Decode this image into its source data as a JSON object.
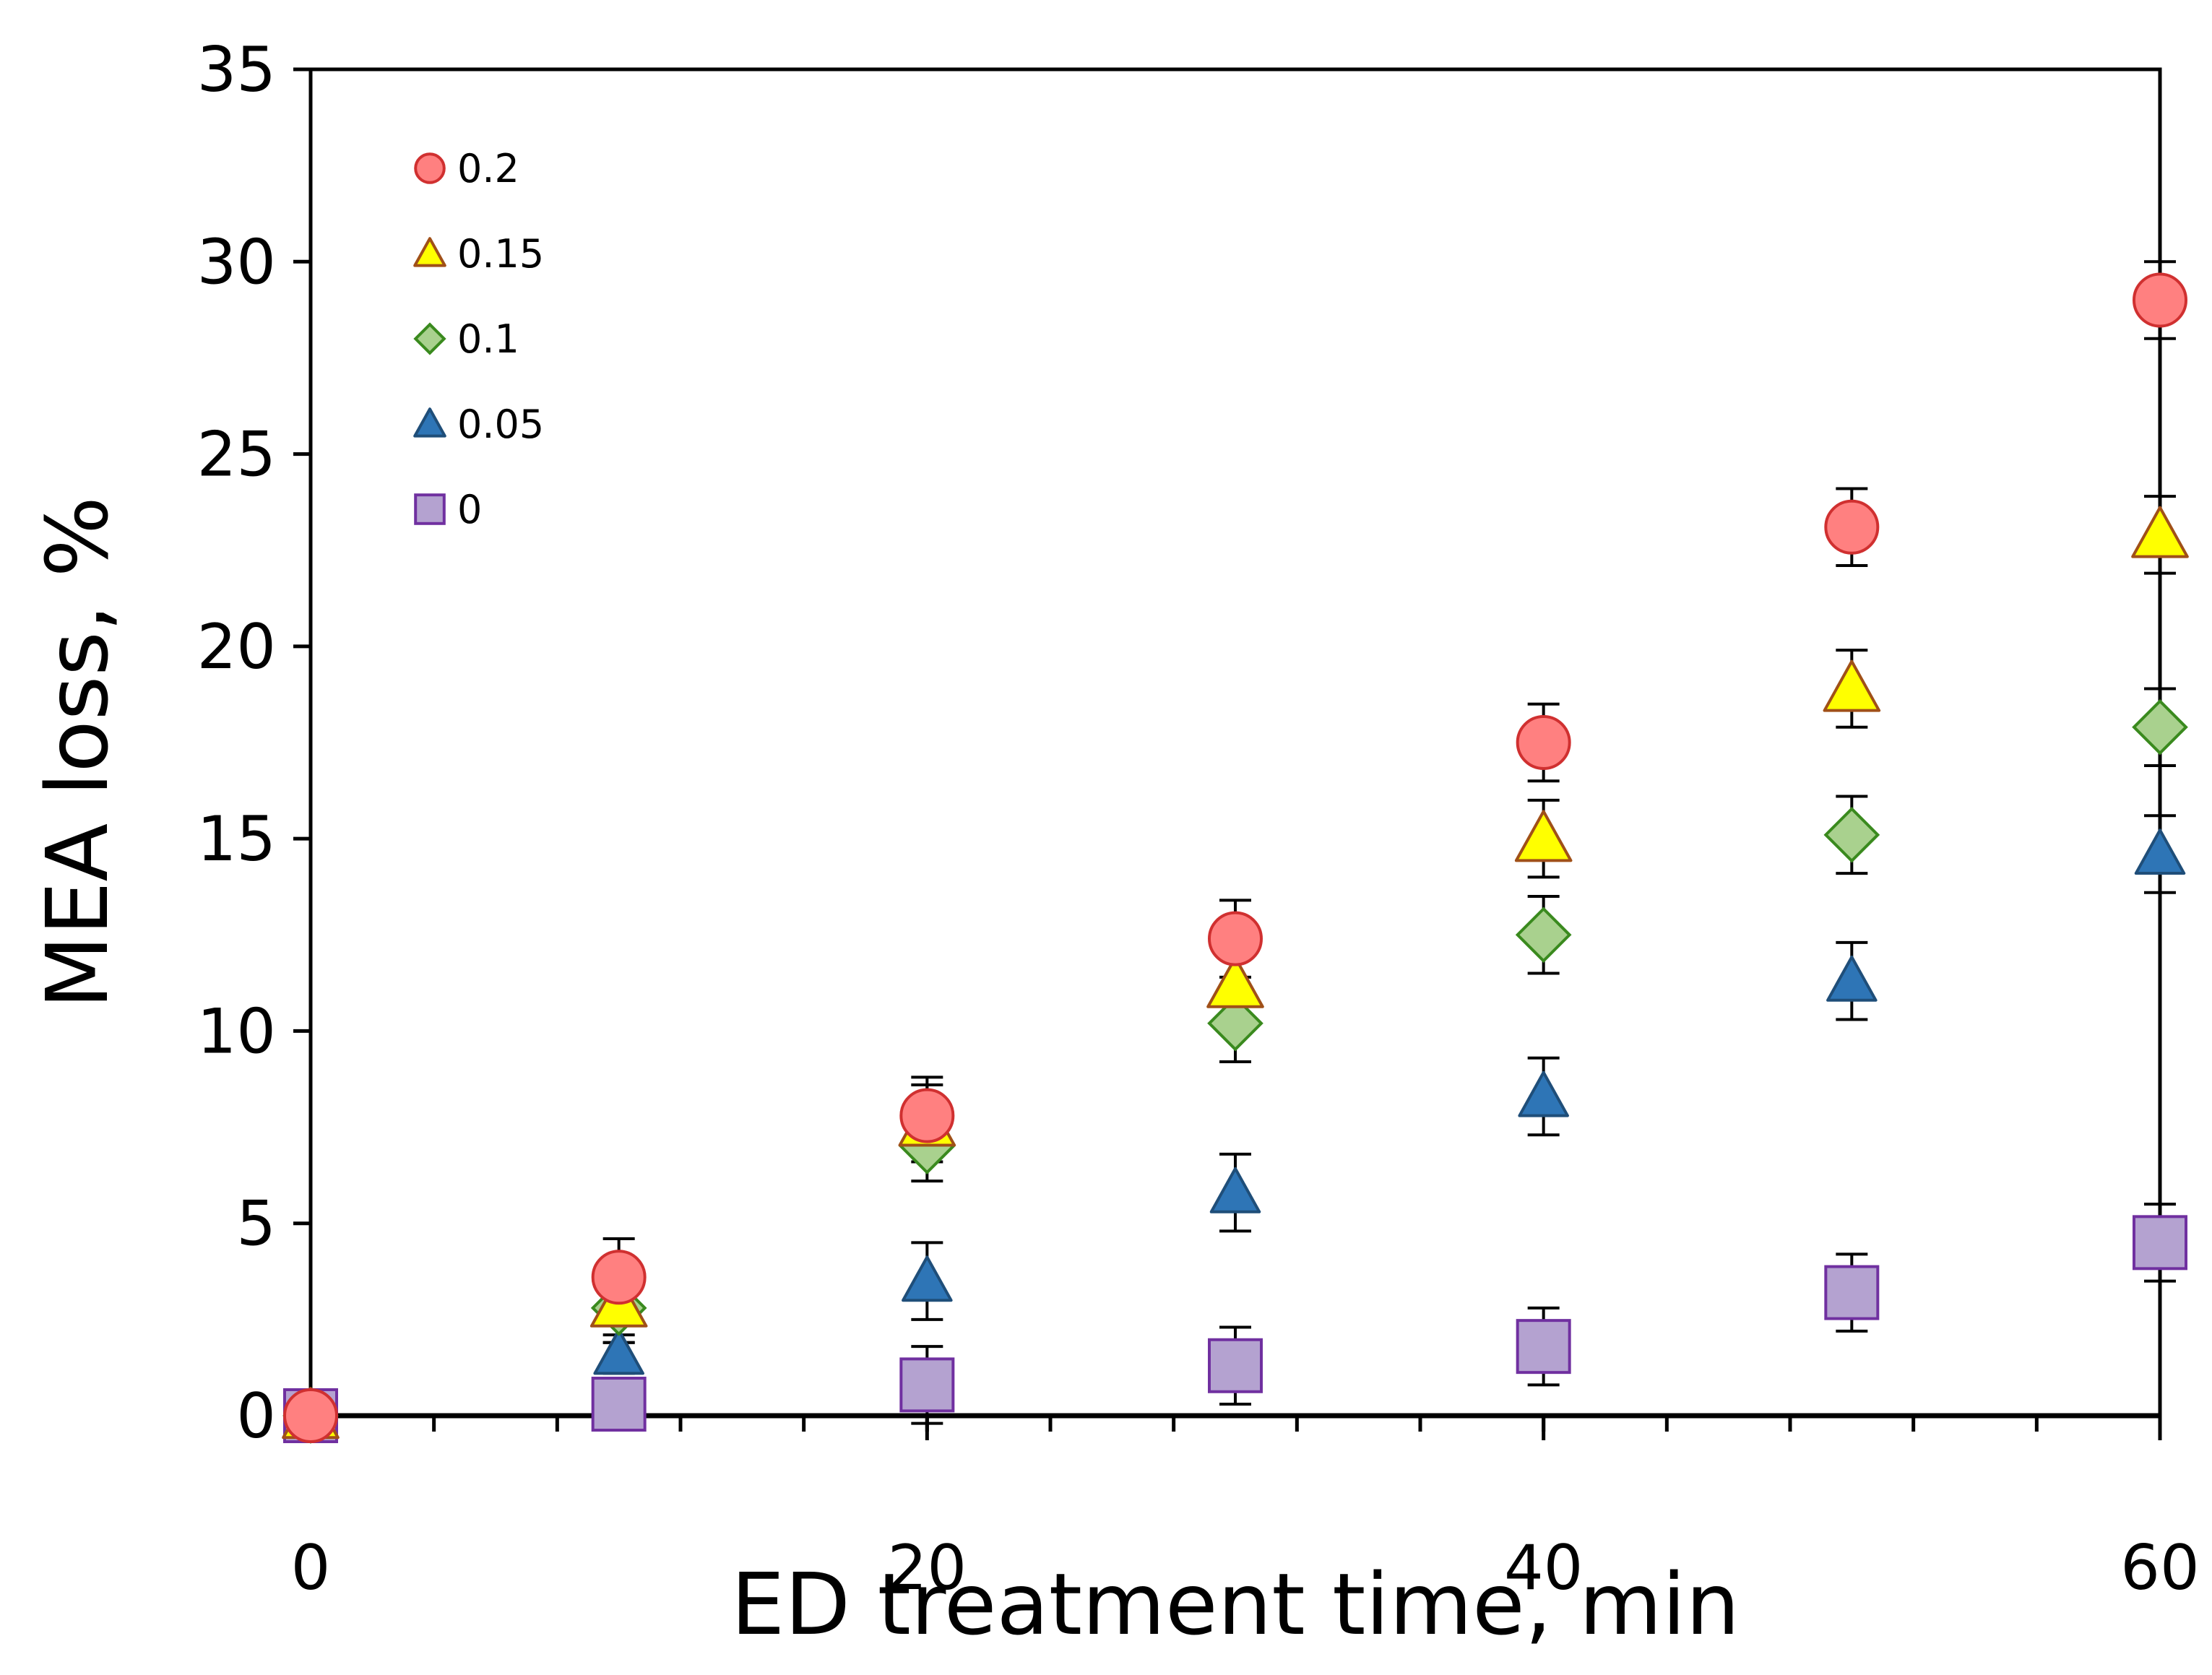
{
  "chart_data": {
    "type": "scatter",
    "title": "",
    "xlabel": "ED treatment time, min",
    "ylabel": "MEA loss, %",
    "xlim": [
      0,
      60
    ],
    "ylim": [
      0,
      35
    ],
    "xticks": [
      0,
      20,
      40,
      60
    ],
    "xtick_labels": [
      "0",
      "20",
      "40",
      "60"
    ],
    "yticks": [
      0,
      5,
      10,
      15,
      20,
      25,
      30,
      35
    ],
    "ytick_labels": [
      "0",
      "5",
      "10",
      "15",
      "20",
      "25",
      "30",
      "35"
    ],
    "x_minor_step": 4,
    "grid": false,
    "legend_position": "top-left",
    "x": [
      0,
      10,
      20,
      30,
      40,
      50,
      60
    ],
    "series": [
      {
        "name": "0.2",
        "marker": "circle",
        "fill": "#ff8080",
        "stroke": "#d03030",
        "size": 1,
        "values": [
          0,
          3.6,
          7.8,
          12.4,
          17.5,
          23.1,
          29.0
        ],
        "errors": [
          0,
          1.0,
          1.0,
          1.0,
          1.0,
          1.0,
          1.0
        ]
      },
      {
        "name": "0.15",
        "marker": "triangle",
        "fill": "#ffff00",
        "stroke": "#a05018",
        "size": 1,
        "values": [
          0,
          2.9,
          7.6,
          11.2,
          15.0,
          18.9,
          22.9
        ],
        "errors": [
          0,
          1.0,
          1.0,
          1.0,
          1.0,
          1.0,
          1.0
        ]
      },
      {
        "name": "0.1",
        "marker": "diamond",
        "fill": "#a9d18e",
        "stroke": "#3a8a1e",
        "size": 1,
        "values": [
          0,
          2.8,
          7.0,
          10.2,
          12.5,
          15.1,
          17.9
        ],
        "errors": [
          0,
          0.9,
          0.9,
          1.0,
          1.0,
          1.0,
          1.0
        ]
      },
      {
        "name": "0.05",
        "marker": "triangle",
        "fill": "#2e75b6",
        "stroke": "#1f4e79",
        "size": 0.88,
        "values": [
          0,
          1.6,
          3.5,
          5.8,
          8.3,
          11.3,
          14.6
        ],
        "errors": [
          0,
          0.5,
          1.0,
          1.0,
          1.0,
          1.0,
          1.0
        ]
      },
      {
        "name": "0",
        "marker": "square",
        "fill": "#b4a2d0",
        "stroke": "#7030a0",
        "size": 1,
        "values": [
          0,
          0.3,
          0.8,
          1.3,
          1.8,
          3.2,
          4.5
        ],
        "errors": [
          0,
          0,
          1.0,
          1.0,
          1.0,
          1.0,
          1.0
        ]
      }
    ]
  }
}
